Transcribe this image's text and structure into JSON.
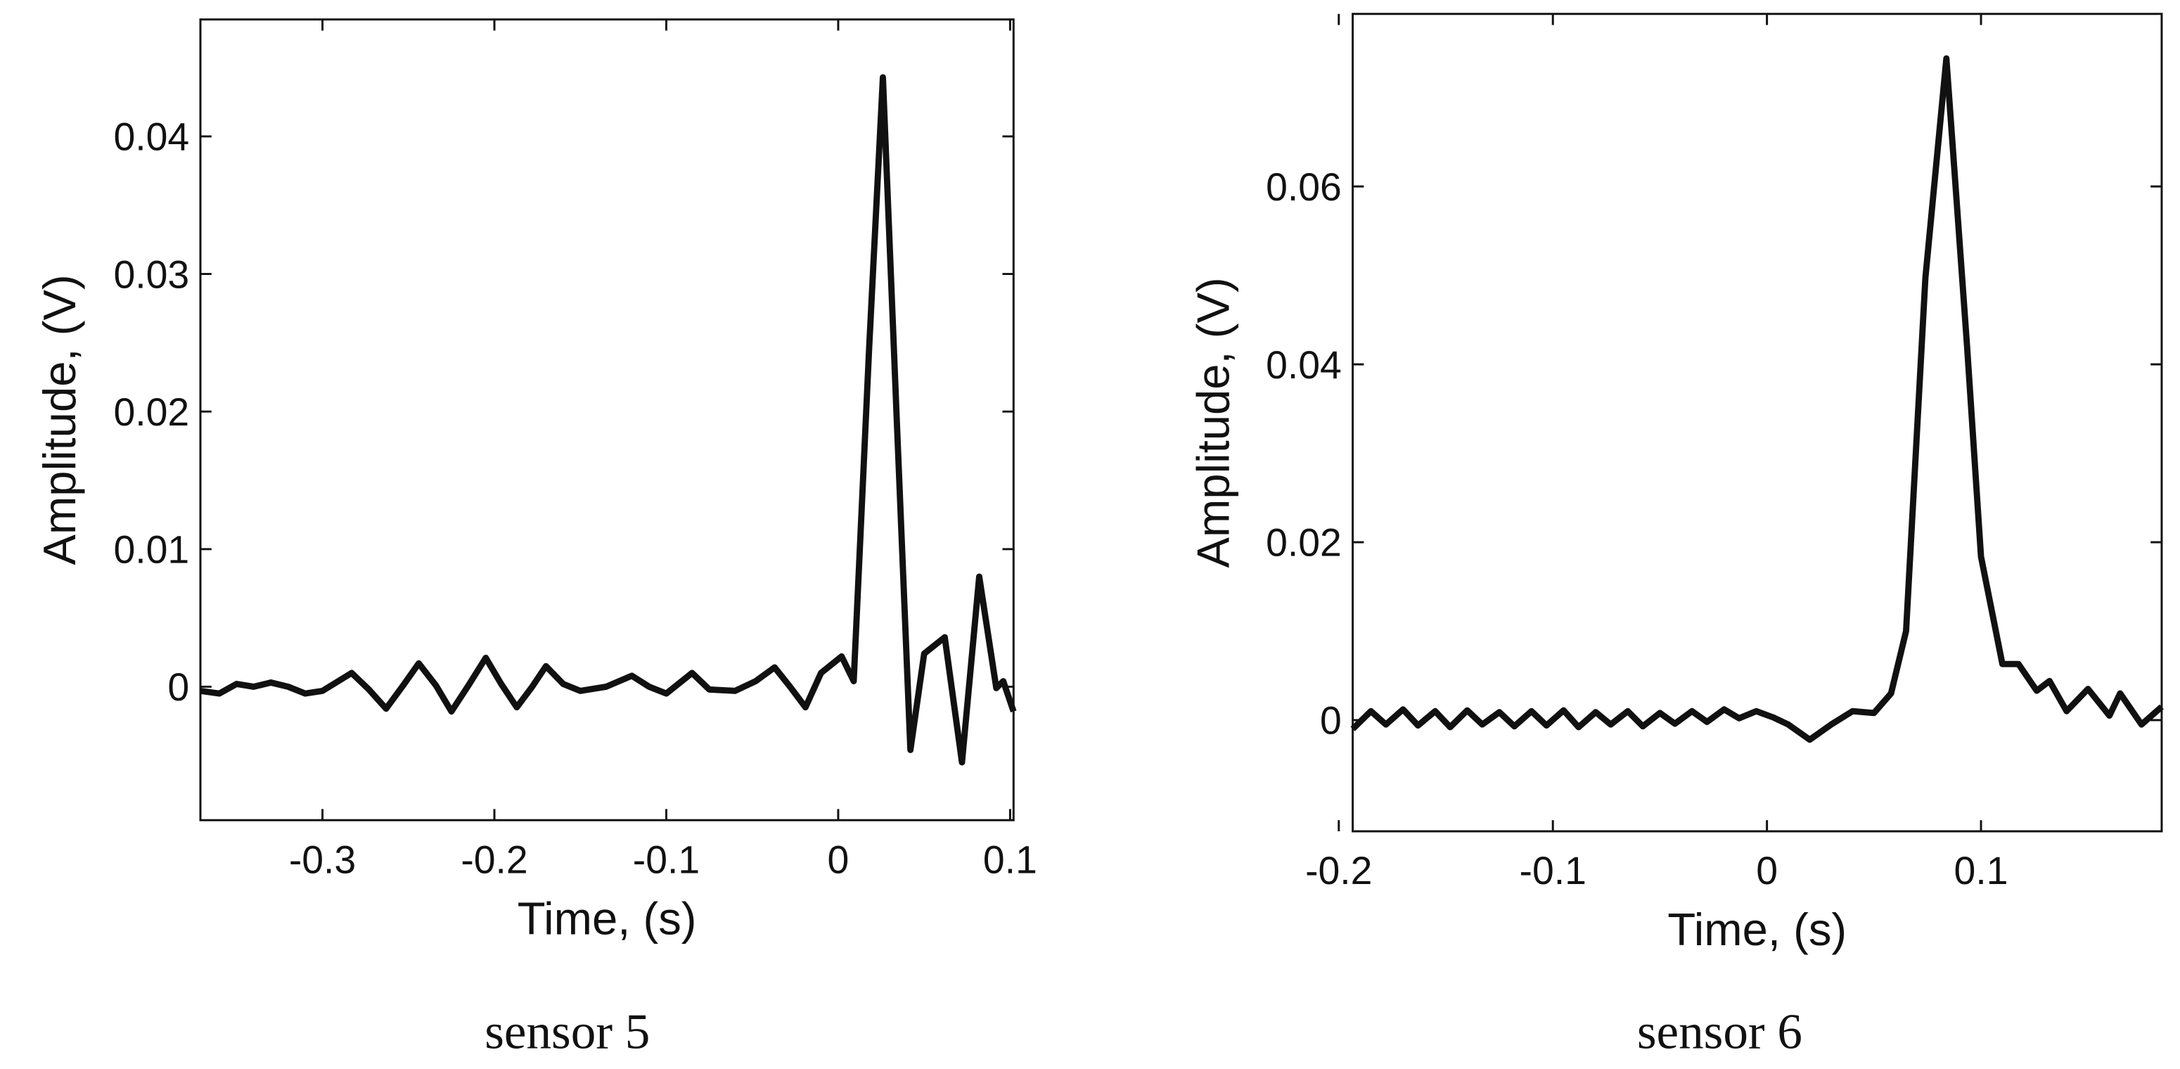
{
  "chart_data": [
    {
      "type": "line",
      "caption": "sensor 5",
      "xlabel": "Time, (s)",
      "ylabel": "Amplitude, (V)",
      "color": "#111111",
      "xlim": [
        -0.371,
        0.102
      ],
      "ylim": [
        -0.0097,
        0.0485
      ],
      "xticks": [
        -0.3,
        -0.2,
        -0.1,
        0,
        0.1
      ],
      "yticks": [
        0,
        0.01,
        0.02,
        0.03,
        0.04
      ],
      "x": [
        -0.371,
        -0.36,
        -0.35,
        -0.34,
        -0.33,
        -0.32,
        -0.31,
        -0.3,
        -0.283,
        -0.273,
        -0.263,
        -0.253,
        -0.244,
        -0.234,
        -0.225,
        -0.215,
        -0.205,
        -0.196,
        -0.187,
        -0.178,
        -0.17,
        -0.16,
        -0.15,
        -0.135,
        -0.12,
        -0.11,
        -0.1,
        -0.085,
        -0.075,
        -0.06,
        -0.048,
        -0.037,
        -0.028,
        -0.019,
        -0.01,
        0.002,
        0.009,
        0.018,
        0.026,
        0.034,
        0.042,
        0.05,
        0.062,
        0.072,
        0.082,
        0.092,
        0.096,
        0.102
      ],
      "values": [
        -0.0003,
        -0.0005,
        0.0002,
        0,
        0.0003,
        0,
        -0.0005,
        -0.0003,
        0.001,
        -0.0002,
        -0.0016,
        0.0001,
        0.0017,
        0.0001,
        -0.0018,
        0.0001,
        0.0021,
        0.0002,
        -0.0015,
        0,
        0.0015,
        0.0002,
        -0.0003,
        0,
        0.0008,
        0,
        -0.0005,
        0.001,
        -0.0002,
        -0.0003,
        0.0004,
        0.0014,
        0,
        -0.0015,
        0.001,
        0.0022,
        0.0004,
        0.0246,
        0.0443,
        0.0196,
        -0.0046,
        0.0024,
        0.0036,
        -0.0055,
        0.008,
        -0.0001,
        0.0004,
        -0.0018
      ]
    },
    {
      "type": "line",
      "caption": "sensor 6",
      "xlabel": "Time, (s)",
      "ylabel": "Amplitude, (V)",
      "color": "#111111",
      "xlim": [
        -0.1935,
        0.1844
      ],
      "ylim": [
        -0.0125,
        0.0794
      ],
      "xticks": [
        -0.2,
        -0.1,
        0,
        0.1
      ],
      "yticks": [
        0,
        0.02,
        0.04,
        0.06
      ],
      "x": [
        -0.1935,
        -0.185,
        -0.178,
        -0.17,
        -0.163,
        -0.155,
        -0.148,
        -0.14,
        -0.133,
        -0.125,
        -0.118,
        -0.11,
        -0.103,
        -0.095,
        -0.088,
        -0.08,
        -0.073,
        -0.065,
        -0.058,
        -0.05,
        -0.043,
        -0.035,
        -0.028,
        -0.02,
        -0.013,
        -0.005,
        0.003,
        0.01,
        0.02,
        0.03,
        0.04,
        0.05,
        0.058,
        0.065,
        0.074,
        0.0838,
        0.0935,
        0.1,
        0.11,
        0.1175,
        0.126,
        0.132,
        0.14,
        0.15,
        0.16,
        0.165,
        0.175,
        0.1844
      ],
      "values": [
        -0.001,
        0.001,
        -0.0005,
        0.0012,
        -0.0006,
        0.001,
        -0.0008,
        0.0011,
        -0.0005,
        0.0009,
        -0.0007,
        0.001,
        -0.0006,
        0.0011,
        -0.0008,
        0.0009,
        -0.0005,
        0.001,
        -0.0007,
        0.0008,
        -0.0004,
        0.001,
        -0.0002,
        0.0012,
        0.0002,
        0.001,
        0.0003,
        -0.0005,
        -0.0022,
        -0.0005,
        0.001,
        0.0008,
        0.003,
        0.01,
        0.0497,
        0.0744,
        0.042,
        0.0184,
        0.0063,
        0.0063,
        0.0033,
        0.0044,
        0.001,
        0.0035,
        0.0005,
        0.003,
        -0.0005,
        0.0015
      ]
    }
  ]
}
